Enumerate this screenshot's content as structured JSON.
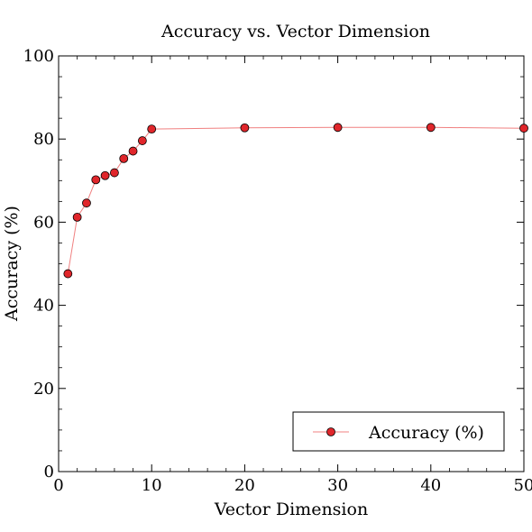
{
  "chart_data": {
    "type": "line",
    "title": "Accuracy vs. Vector Dimension",
    "xlabel": "Vector Dimension",
    "ylabel": "Accuracy (%)",
    "xlim": [
      0,
      50
    ],
    "ylim": [
      0,
      100
    ],
    "x_ticks": [
      0,
      10,
      20,
      30,
      40,
      50
    ],
    "y_ticks": [
      0,
      20,
      40,
      60,
      80,
      100
    ],
    "grid": false,
    "legend_position": "bottom-right",
    "series": [
      {
        "name": "Accuracy (%)",
        "color": "#e0262b",
        "line_color": "#f08080",
        "x": [
          1,
          2,
          3,
          4,
          5,
          6,
          7,
          8,
          9,
          10,
          20,
          30,
          40,
          50
        ],
        "values": [
          47.6,
          61.2,
          64.6,
          70.2,
          71.2,
          71.9,
          75.3,
          77.1,
          79.6,
          82.4,
          82.7,
          82.8,
          82.8,
          82.6
        ]
      }
    ]
  }
}
